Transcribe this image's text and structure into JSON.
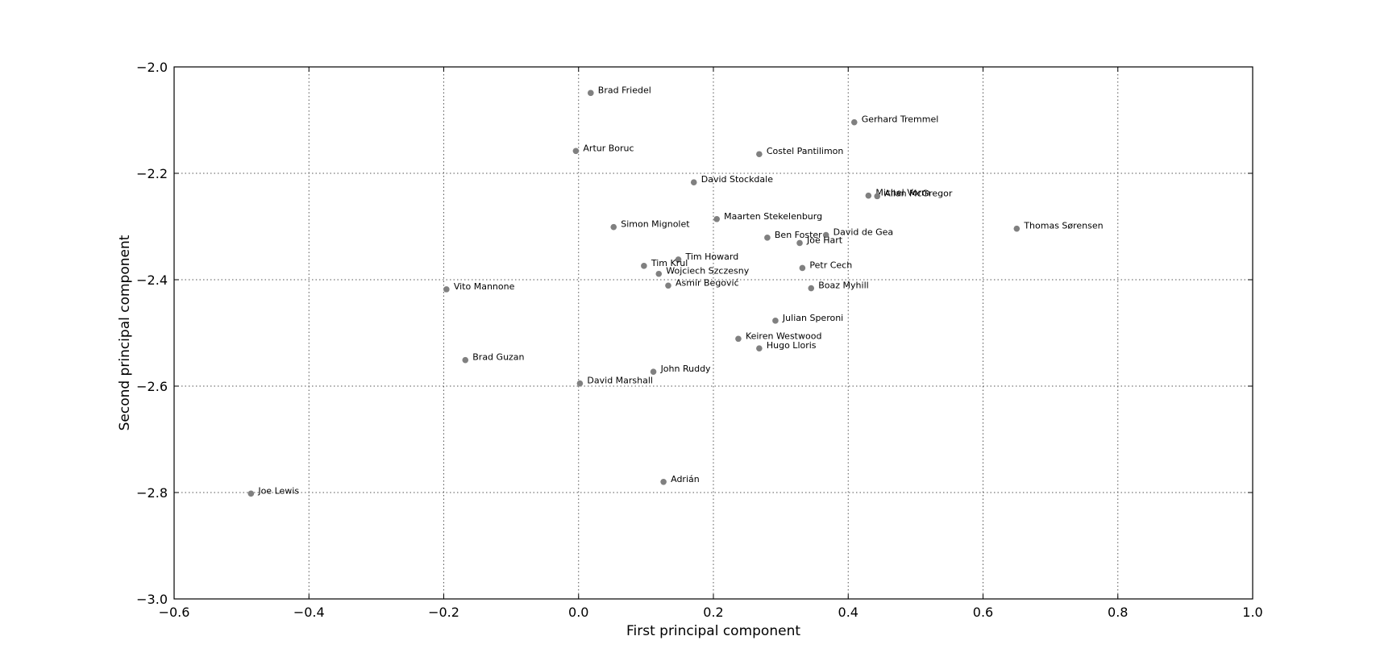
{
  "chart_data": {
    "type": "scatter",
    "title": "",
    "xlabel": "First principal component",
    "ylabel": "Second principal component",
    "xlim": [
      -0.6,
      1.0
    ],
    "ylim": [
      -3.0,
      -2.0
    ],
    "grid": true,
    "marker_color": "#808080",
    "x_ticks": [
      -0.6,
      -0.4,
      -0.2,
      0.0,
      0.2,
      0.4,
      0.6,
      0.8,
      1.0
    ],
    "x_tick_labels": [
      "−0.6",
      "−0.4",
      "−0.2",
      "0.0",
      "0.2",
      "0.4",
      "0.6",
      "0.8",
      "1.0"
    ],
    "y_ticks": [
      -2.0,
      -2.2,
      -2.4,
      -2.6,
      -2.8,
      -3.0
    ],
    "y_tick_labels": [
      "−2.0",
      "−2.2",
      "−2.4",
      "−2.6",
      "−2.8",
      "−3.0"
    ],
    "points": [
      {
        "label": "Brad Friedel",
        "x": 0.018,
        "y": -2.049
      },
      {
        "label": "Gerhard Tremmel",
        "x": 0.409,
        "y": -2.104
      },
      {
        "label": "Artur Boruc",
        "x": -0.004,
        "y": -2.158
      },
      {
        "label": "Costel Pantilimon",
        "x": 0.268,
        "y": -2.164
      },
      {
        "label": "David Stockdale",
        "x": 0.171,
        "y": -2.217
      },
      {
        "label": "Michel Vorm",
        "x": 0.43,
        "y": -2.242
      },
      {
        "label": "Allan McGregor",
        "x": 0.443,
        "y": -2.243
      },
      {
        "label": "Maarten Stekelenburg",
        "x": 0.205,
        "y": -2.286
      },
      {
        "label": "Simon Mignolet",
        "x": 0.052,
        "y": -2.301
      },
      {
        "label": "Thomas Sørensen",
        "x": 0.65,
        "y": -2.304
      },
      {
        "label": "David de Gea",
        "x": 0.367,
        "y": -2.316
      },
      {
        "label": "Ben Foster",
        "x": 0.28,
        "y": -2.321
      },
      {
        "label": "Joe Hart",
        "x": 0.328,
        "y": -2.331
      },
      {
        "label": "Tim Howard",
        "x": 0.148,
        "y": -2.362
      },
      {
        "label": "Tim Krul",
        "x": 0.097,
        "y": -2.374
      },
      {
        "label": "Petr Cech",
        "x": 0.332,
        "y": -2.378
      },
      {
        "label": "Wojciech Szczesny",
        "x": 0.119,
        "y": -2.389
      },
      {
        "label": "Asmir Begović",
        "x": 0.133,
        "y": -2.411
      },
      {
        "label": "Vito Mannone",
        "x": -0.196,
        "y": -2.418
      },
      {
        "label": "Boaz Myhill",
        "x": 0.345,
        "y": -2.416
      },
      {
        "label": "Julian Speroni",
        "x": 0.292,
        "y": -2.477
      },
      {
        "label": "Keiren Westwood",
        "x": 0.237,
        "y": -2.511
      },
      {
        "label": "Hugo Lloris",
        "x": 0.268,
        "y": -2.529
      },
      {
        "label": "Brad Guzan",
        "x": -0.168,
        "y": -2.551
      },
      {
        "label": "John Ruddy",
        "x": 0.111,
        "y": -2.573
      },
      {
        "label": "David Marshall",
        "x": 0.002,
        "y": -2.595
      },
      {
        "label": "Adrián",
        "x": 0.126,
        "y": -2.78
      },
      {
        "label": "Joe Lewis",
        "x": -0.486,
        "y": -2.802
      }
    ]
  }
}
